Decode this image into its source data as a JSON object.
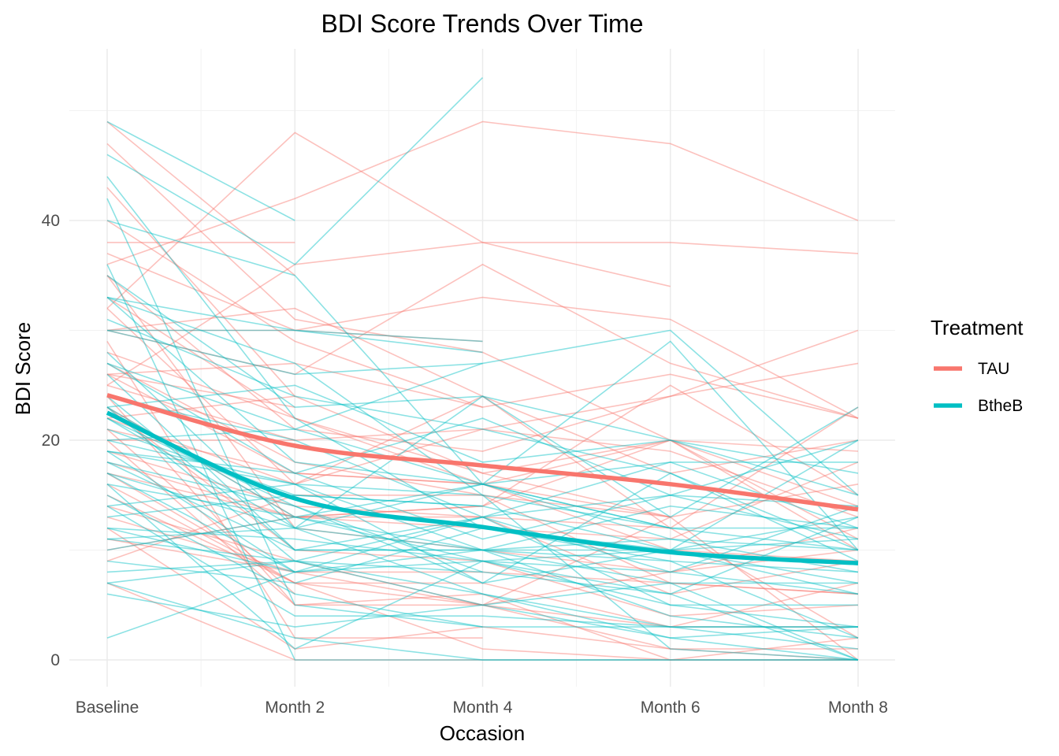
{
  "chart_data": {
    "type": "line",
    "title": "BDI Score Trends Over Time",
    "xlabel": "Occasion",
    "ylabel": "BDI Score",
    "categories": [
      "Baseline",
      "Month 2",
      "Month 4",
      "Month 6",
      "Month 8"
    ],
    "ylim": [
      -2.5,
      55
    ],
    "yticks": [
      0,
      20,
      40
    ],
    "grid": true,
    "legend": {
      "title": "Treatment",
      "position": "right",
      "entries": [
        {
          "name": "TAU",
          "color": "#F8766D"
        },
        {
          "name": "BtheB",
          "color": "#00BFC4"
        }
      ]
    },
    "trend_series": [
      {
        "name": "TAU",
        "color": "#F8766D",
        "values": [
          24.1,
          19.5,
          17.7,
          16.0,
          13.7
        ]
      },
      {
        "name": "BtheB",
        "color": "#00BFC4",
        "values": [
          22.5,
          14.7,
          12.1,
          9.8,
          8.8
        ]
      }
    ],
    "individual_series": [
      {
        "group": "TAU",
        "values": [
          29,
          2,
          2,
          null,
          null
        ]
      },
      {
        "group": "TAU",
        "values": [
          32,
          16,
          24,
          17,
          20
        ]
      },
      {
        "group": "TAU",
        "values": [
          25,
          20,
          null,
          null,
          null
        ]
      },
      {
        "group": "TAU",
        "values": [
          21,
          17,
          16,
          10,
          9
        ]
      },
      {
        "group": "TAU",
        "values": [
          26,
          23,
          null,
          null,
          null
        ]
      },
      {
        "group": "TAU",
        "values": [
          7,
          0,
          0,
          0,
          0
        ]
      },
      {
        "group": "TAU",
        "values": [
          17,
          7,
          7,
          3,
          7
        ]
      },
      {
        "group": "TAU",
        "values": [
          20,
          20,
          21,
          19,
          13
        ]
      },
      {
        "group": "TAU",
        "values": [
          18,
          13,
          14,
          20,
          11
        ]
      },
      {
        "group": "TAU",
        "values": [
          20,
          5,
          5,
          8,
          12
        ]
      },
      {
        "group": "TAU",
        "values": [
          30,
          32,
          24,
          12,
          2
        ]
      },
      {
        "group": "TAU",
        "values": [
          49,
          35,
          null,
          null,
          null
        ]
      },
      {
        "group": "TAU",
        "values": [
          26,
          27,
          23,
          null,
          null
        ]
      },
      {
        "group": "TAU",
        "values": [
          30,
          26,
          36,
          27,
          22
        ]
      },
      {
        "group": "TAU",
        "values": [
          23,
          13,
          13,
          12,
          23
        ]
      },
      {
        "group": "TAU",
        "values": [
          16,
          7,
          1,
          0,
          0
        ]
      },
      {
        "group": "TAU",
        "values": [
          30,
          30,
          29,
          null,
          null
        ]
      },
      {
        "group": "TAU",
        "values": [
          13,
          8,
          8,
          7,
          6
        ]
      },
      {
        "group": "TAU",
        "values": [
          37,
          30,
          33,
          31,
          22
        ]
      },
      {
        "group": "TAU",
        "values": [
          35,
          12,
          10,
          8,
          10
        ]
      },
      {
        "group": "TAU",
        "values": [
          21,
          6,
          null,
          null,
          null
        ]
      },
      {
        "group": "TAU",
        "values": [
          26,
          17,
          16,
          13,
          null
        ]
      },
      {
        "group": "TAU",
        "values": [
          36,
          42,
          49,
          47,
          40
        ]
      },
      {
        "group": "TAU",
        "values": [
          43,
          24,
          null,
          null,
          null
        ]
      },
      {
        "group": "TAU",
        "values": [
          35,
          21,
          19,
          24,
          27
        ]
      },
      {
        "group": "TAU",
        "values": [
          27,
          18,
          15,
          7,
          6
        ]
      },
      {
        "group": "TAU",
        "values": [
          22,
          24,
          17,
          13,
          0
        ]
      },
      {
        "group": "TAU",
        "values": [
          38,
          38,
          null,
          null,
          null
        ]
      },
      {
        "group": "TAU",
        "values": [
          11,
          8,
          5,
          3,
          3
        ]
      },
      {
        "group": "TAU",
        "values": [
          9,
          15,
          15,
          13,
          16
        ]
      },
      {
        "group": "TAU",
        "values": [
          25,
          36,
          38,
          38,
          37
        ]
      },
      {
        "group": "TAU",
        "values": [
          24,
          5,
          6,
          0,
          2
        ]
      },
      {
        "group": "TAU",
        "values": [
          32,
          48,
          38,
          34,
          null
        ]
      },
      {
        "group": "TAU",
        "values": [
          40,
          29,
          23,
          26,
          22
        ]
      },
      {
        "group": "TAU",
        "values": [
          14,
          9,
          5,
          1,
          1
        ]
      },
      {
        "group": "TAU",
        "values": [
          28,
          22,
          16,
          20,
          19
        ]
      },
      {
        "group": "TAU",
        "values": [
          15,
          7,
          5,
          13,
          null
        ]
      },
      {
        "group": "TAU",
        "values": [
          22,
          16,
          21,
          24,
          30
        ]
      },
      {
        "group": "TAU",
        "values": [
          12,
          1,
          3,
          1,
          0
        ]
      },
      {
        "group": "TAU",
        "values": [
          47,
          31,
          28,
          20,
          10
        ]
      },
      {
        "group": "TAU",
        "values": [
          10,
          13,
          14,
          25,
          15
        ]
      },
      {
        "group": "TAU",
        "values": [
          33,
          22,
          17,
          20,
          14
        ]
      },
      {
        "group": "TAU",
        "values": [
          19,
          14,
          13,
          6,
          9
        ]
      },
      {
        "group": "TAU",
        "values": [
          17,
          13,
          12,
          11,
          18
        ]
      },
      {
        "group": "TAU",
        "values": [
          23,
          10,
          9,
          4,
          5
        ]
      },
      {
        "group": "BtheB",
        "values": [
          21,
          15,
          14,
          null,
          null
        ]
      },
      {
        "group": "BtheB",
        "values": [
          7,
          9,
          8,
          null,
          null
        ]
      },
      {
        "group": "BtheB",
        "values": [
          16,
          1,
          9,
          6,
          0
        ]
      },
      {
        "group": "BtheB",
        "values": [
          11,
          9,
          6,
          3,
          1
        ]
      },
      {
        "group": "BtheB",
        "values": [
          19,
          8,
          9,
          5,
          5
        ]
      },
      {
        "group": "BtheB",
        "values": [
          2,
          8,
          null,
          null,
          null
        ]
      },
      {
        "group": "BtheB",
        "values": [
          33,
          30,
          29,
          null,
          null
        ]
      },
      {
        "group": "BtheB",
        "values": [
          18,
          14,
          7,
          10,
          6
        ]
      },
      {
        "group": "BtheB",
        "values": [
          46,
          36,
          53,
          null,
          null
        ]
      },
      {
        "group": "BtheB",
        "values": [
          36,
          0,
          0,
          0,
          0
        ]
      },
      {
        "group": "BtheB",
        "values": [
          30,
          30,
          28,
          null,
          null
        ]
      },
      {
        "group": "BtheB",
        "values": [
          22,
          12,
          10,
          9,
          8
        ]
      },
      {
        "group": "BtheB",
        "values": [
          27,
          17,
          11,
          15,
          11
        ]
      },
      {
        "group": "BtheB",
        "values": [
          14,
          4,
          4,
          3,
          3
        ]
      },
      {
        "group": "BtheB",
        "values": [
          42,
          5,
          3,
          null,
          null
        ]
      },
      {
        "group": "BtheB",
        "values": [
          24,
          20,
          13,
          8,
          6
        ]
      },
      {
        "group": "BtheB",
        "values": [
          13,
          15,
          14,
          10,
          13
        ]
      },
      {
        "group": "BtheB",
        "values": [
          44,
          22,
          12,
          10,
          20
        ]
      },
      {
        "group": "BtheB",
        "values": [
          19,
          16,
          15,
          12,
          10
        ]
      },
      {
        "group": "BtheB",
        "values": [
          30,
          26,
          27,
          30,
          15
        ]
      },
      {
        "group": "BtheB",
        "values": [
          49,
          40,
          null,
          null,
          null
        ]
      },
      {
        "group": "BtheB",
        "values": [
          20,
          16,
          7,
          17,
          9
        ]
      },
      {
        "group": "BtheB",
        "values": [
          10,
          13,
          10,
          4,
          2
        ]
      },
      {
        "group": "BtheB",
        "values": [
          35,
          23,
          24,
          20,
          15
        ]
      },
      {
        "group": "BtheB",
        "values": [
          16,
          13,
          16,
          18,
          12
        ]
      },
      {
        "group": "BtheB",
        "values": [
          31,
          24,
          21,
          17,
          10
        ]
      },
      {
        "group": "BtheB",
        "values": [
          23,
          9,
          5,
          2,
          3
        ]
      },
      {
        "group": "BtheB",
        "values": [
          9,
          7,
          12,
          9,
          2
        ]
      },
      {
        "group": "BtheB",
        "values": [
          12,
          11,
          9,
          10,
          7
        ]
      },
      {
        "group": "BtheB",
        "values": [
          33,
          18,
          16,
          12,
          12
        ]
      },
      {
        "group": "BtheB",
        "values": [
          17,
          8,
          10,
          14,
          12
        ]
      },
      {
        "group": "BtheB",
        "values": [
          26,
          10,
          10,
          10,
          11
        ]
      },
      {
        "group": "BtheB",
        "values": [
          18,
          10,
          10,
          7,
          0
        ]
      },
      {
        "group": "BtheB",
        "values": [
          24,
          10,
          13,
          5,
          3
        ]
      },
      {
        "group": "BtheB",
        "values": [
          28,
          12,
          6,
          2,
          0
        ]
      },
      {
        "group": "BtheB",
        "values": [
          15,
          6,
          3,
          3,
          3
        ]
      },
      {
        "group": "BtheB",
        "values": [
          40,
          35,
          16,
          29,
          10
        ]
      },
      {
        "group": "BtheB",
        "values": [
          23,
          13,
          9,
          8,
          14
        ]
      },
      {
        "group": "BtheB",
        "values": [
          22,
          14,
          8,
          6,
          13
        ]
      },
      {
        "group": "BtheB",
        "values": [
          12,
          8,
          13,
          18,
          18
        ]
      },
      {
        "group": "BtheB",
        "values": [
          27,
          21,
          16,
          11,
          10
        ]
      },
      {
        "group": "BtheB",
        "values": [
          19,
          17,
          22,
          15,
          20
        ]
      },
      {
        "group": "BtheB",
        "values": [
          6,
          3,
          5,
          7,
          7
        ]
      },
      {
        "group": "BtheB",
        "values": [
          33,
          27,
          15,
          1,
          0
        ]
      },
      {
        "group": "BtheB",
        "values": [
          17,
          12,
          24,
          13,
          23
        ]
      },
      {
        "group": "BtheB",
        "values": [
          7,
          2,
          0,
          0,
          0
        ]
      },
      {
        "group": "BtheB",
        "values": [
          11,
          12,
          16,
          12,
          null
        ]
      },
      {
        "group": "BtheB",
        "values": [
          20,
          21,
          27,
          null,
          null
        ]
      },
      {
        "group": "BtheB",
        "values": [
          14,
          16,
          10,
          11,
          8
        ]
      },
      {
        "group": "BtheB",
        "values": [
          8,
          9,
          13,
          15,
          14
        ]
      },
      {
        "group": "BtheB",
        "values": [
          23,
          25,
          18,
          20,
          17
        ]
      }
    ]
  }
}
